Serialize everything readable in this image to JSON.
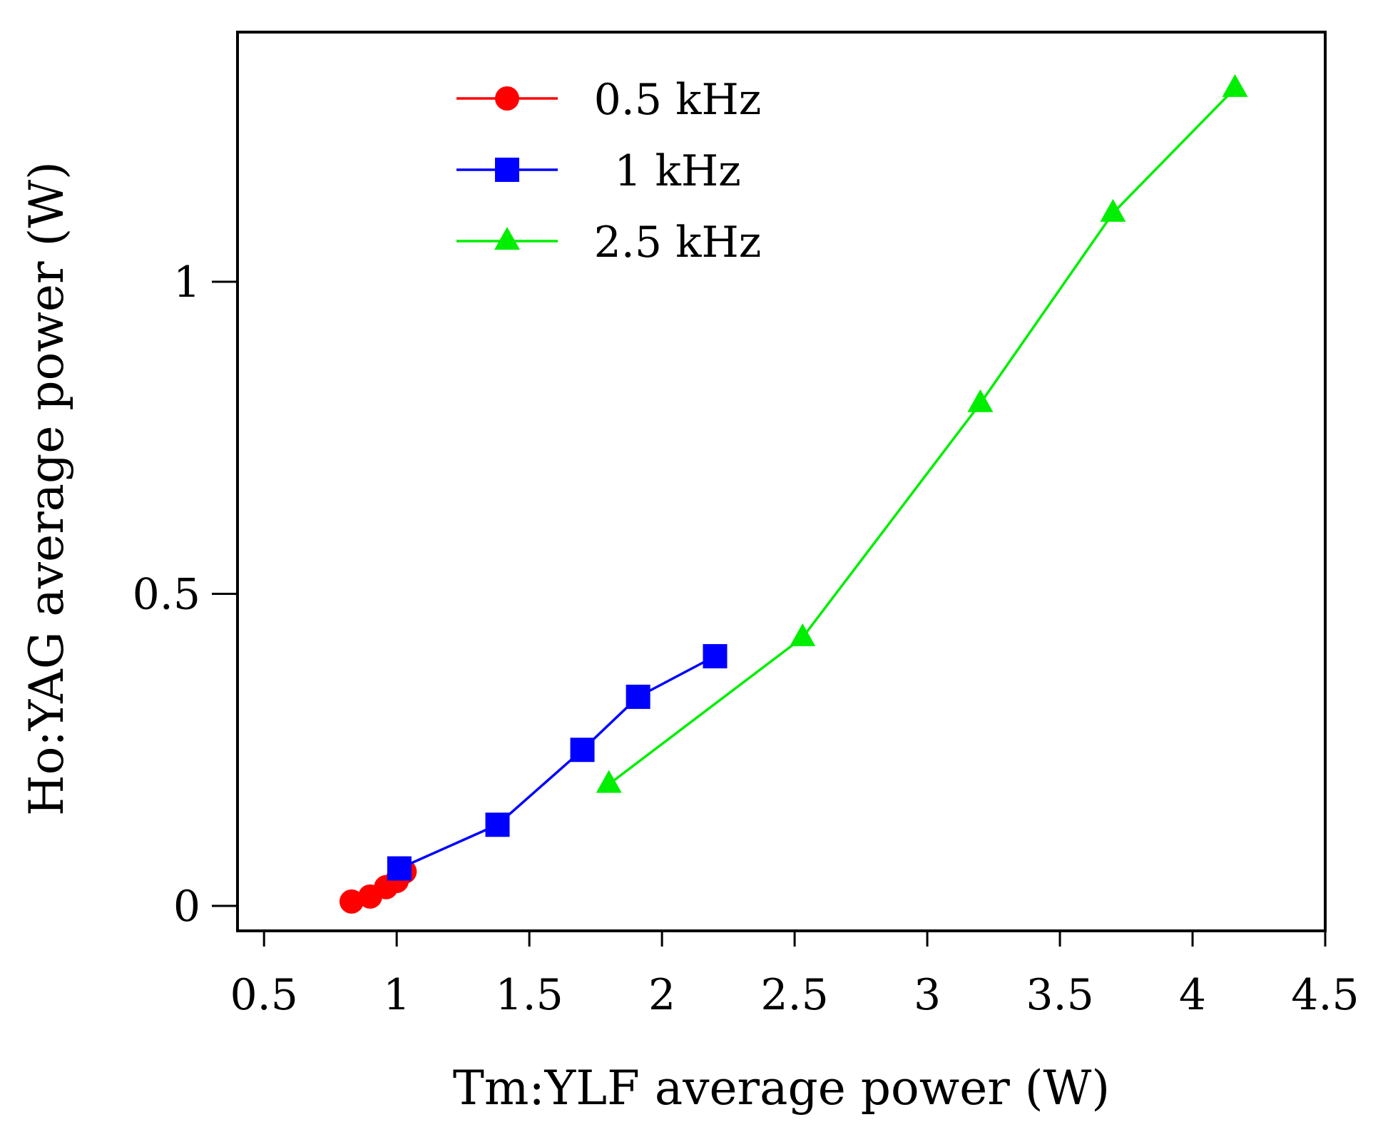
{
  "chart_data": {
    "type": "line",
    "title": "",
    "xlabel": "Tm:YLF average power (W)",
    "ylabel": "Ho:YAG average power (W)",
    "xlim": [
      0.4,
      4.5
    ],
    "ylim": [
      -0.04,
      1.4
    ],
    "xticks": [
      0.5,
      1,
      1.5,
      2,
      2.5,
      3,
      3.5,
      4,
      4.5
    ],
    "xtick_labels": [
      "0.5",
      "1",
      "1.5",
      "2",
      "2.5",
      "3",
      "3.5",
      "4",
      "4.5"
    ],
    "yticks": [
      0,
      0.5,
      1
    ],
    "ytick_labels": [
      "0",
      "0.5",
      "1"
    ],
    "grid": false,
    "legend_position": "top-center",
    "series": [
      {
        "name": "0.5 kHz",
        "color": "#ff0000",
        "marker": "circle",
        "x": [
          0.83,
          0.9,
          0.96,
          1.0,
          1.03
        ],
        "y": [
          0.007,
          0.015,
          0.03,
          0.04,
          0.055
        ]
      },
      {
        "name": "1 kHz",
        "color": "#0000ff",
        "marker": "square",
        "x": [
          1.01,
          1.38,
          1.7,
          1.91,
          2.2
        ],
        "y": [
          0.06,
          0.13,
          0.25,
          0.335,
          0.4
        ]
      },
      {
        "name": "2.5 kHz",
        "color": "#00ee00",
        "marker": "triangle",
        "x": [
          1.8,
          2.53,
          3.2,
          3.7,
          4.16
        ],
        "y": [
          0.195,
          0.43,
          0.805,
          1.11,
          1.31
        ]
      }
    ]
  }
}
